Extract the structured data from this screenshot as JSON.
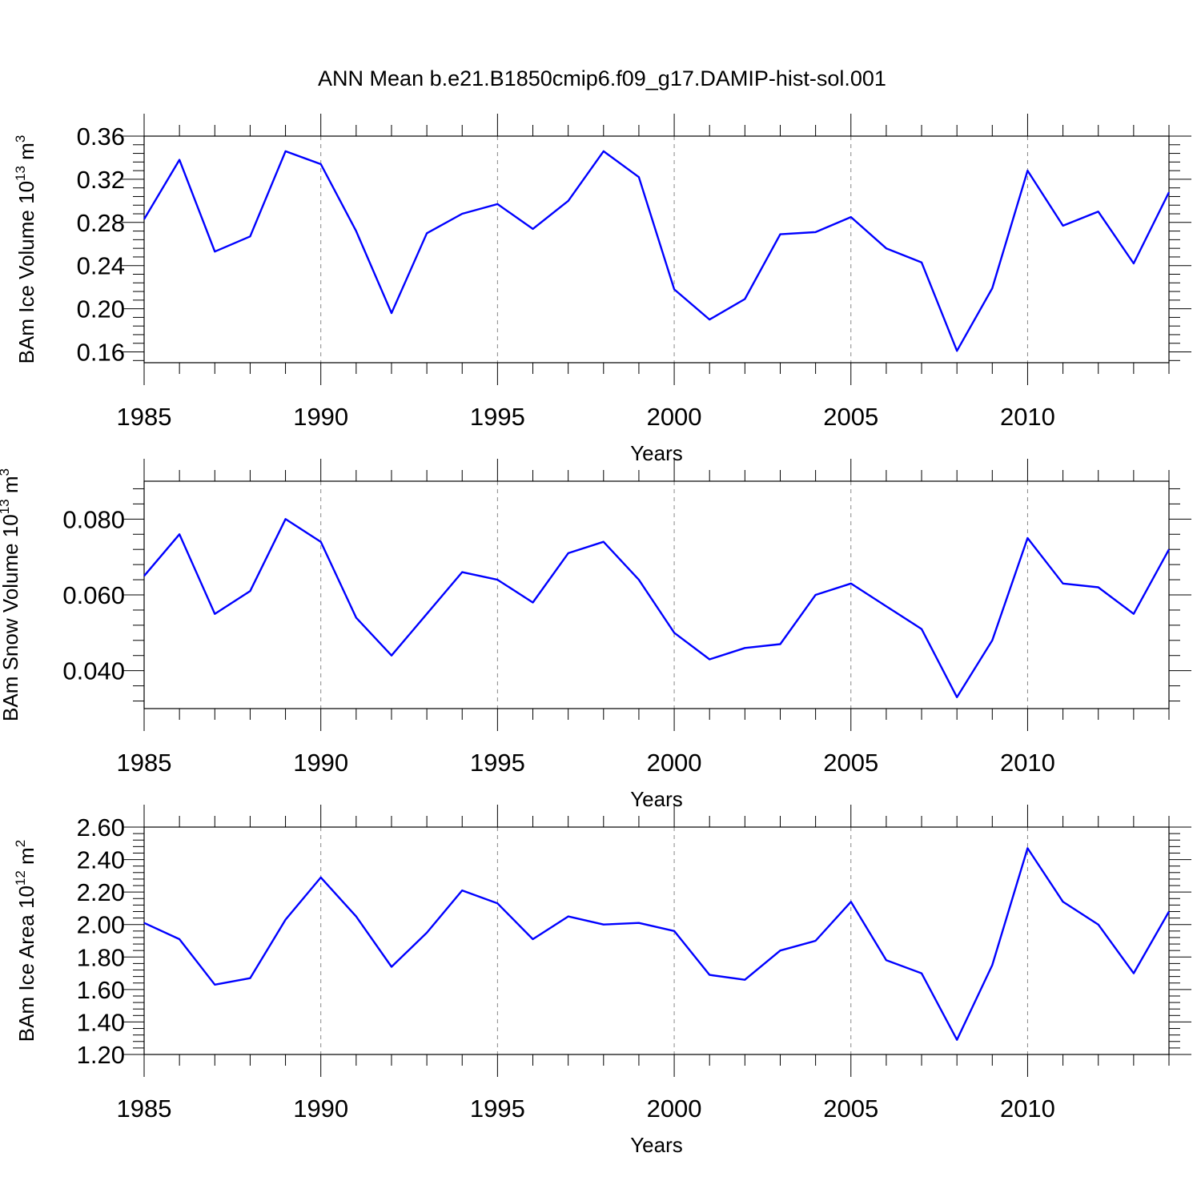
{
  "title": "ANN Mean b.e21.B1850cmip6.f09_g17.DAMIP-hist-sol.001",
  "colors": {
    "series": "#0000ff",
    "grid": "#888888",
    "axis": "#000000"
  },
  "chart_data": [
    {
      "type": "line",
      "xlabel": "Years",
      "ylabel_main": "BAm Ice Volume 10",
      "ylabel_exp": "13",
      "ylabel_unit": " m",
      "ylabel_unit_exp": "3",
      "xlim": [
        1985,
        2014
      ],
      "ylim": [
        0.15,
        0.36
      ],
      "xticks": [
        1985,
        1990,
        1995,
        2000,
        2005,
        2010
      ],
      "yticks": [
        "0.16",
        "0.20",
        "0.24",
        "0.28",
        "0.32",
        "0.36"
      ],
      "grid": "vertical dashed at major x ticks",
      "x": [
        1985,
        1986,
        1987,
        1988,
        1989,
        1990,
        1991,
        1992,
        1993,
        1994,
        1995,
        1996,
        1997,
        1998,
        1999,
        2000,
        2001,
        2002,
        2003,
        2004,
        2005,
        2006,
        2007,
        2008,
        2009,
        2010,
        2011,
        2012,
        2013,
        2014
      ],
      "values": [
        0.283,
        0.338,
        0.253,
        0.267,
        0.346,
        0.334,
        0.272,
        0.196,
        0.27,
        0.288,
        0.297,
        0.274,
        0.3,
        0.346,
        0.322,
        0.218,
        0.19,
        0.209,
        0.269,
        0.271,
        0.285,
        0.256,
        0.243,
        0.161,
        0.219,
        0.328,
        0.277,
        0.29,
        0.242,
        0.308
      ]
    },
    {
      "type": "line",
      "xlabel": "Years",
      "ylabel_main": "BAm Snow Volume 10",
      "ylabel_exp": "13",
      "ylabel_unit": " m",
      "ylabel_unit_exp": "3",
      "xlim": [
        1985,
        2014
      ],
      "ylim": [
        0.03,
        0.09
      ],
      "xticks": [
        1985,
        1990,
        1995,
        2000,
        2005,
        2010
      ],
      "yticks": [
        "0.040",
        "0.060",
        "0.080"
      ],
      "grid": "vertical dashed at major x ticks",
      "x": [
        1985,
        1986,
        1987,
        1988,
        1989,
        1990,
        1991,
        1992,
        1993,
        1994,
        1995,
        1996,
        1997,
        1998,
        1999,
        2000,
        2001,
        2002,
        2003,
        2004,
        2005,
        2006,
        2007,
        2008,
        2009,
        2010,
        2011,
        2012,
        2013,
        2014
      ],
      "values": [
        0.065,
        0.076,
        0.055,
        0.061,
        0.08,
        0.074,
        0.054,
        0.044,
        0.055,
        0.066,
        0.064,
        0.058,
        0.071,
        0.074,
        0.064,
        0.05,
        0.043,
        0.046,
        0.047,
        0.06,
        0.063,
        0.057,
        0.051,
        0.033,
        0.048,
        0.075,
        0.063,
        0.062,
        0.055,
        0.072
      ]
    },
    {
      "type": "line",
      "xlabel": "Years",
      "ylabel_main": "BAm Ice Area 10",
      "ylabel_exp": "12",
      "ylabel_unit": " m",
      "ylabel_unit_exp": "2",
      "xlim": [
        1985,
        2014
      ],
      "ylim": [
        1.2,
        2.6
      ],
      "xticks": [
        1985,
        1990,
        1995,
        2000,
        2005,
        2010
      ],
      "yticks": [
        "1.20",
        "1.40",
        "1.60",
        "1.80",
        "2.00",
        "2.20",
        "2.40",
        "2.60"
      ],
      "grid": "vertical dashed at major x ticks",
      "x": [
        1985,
        1986,
        1987,
        1988,
        1989,
        1990,
        1991,
        1992,
        1993,
        1994,
        1995,
        1996,
        1997,
        1998,
        1999,
        2000,
        2001,
        2002,
        2003,
        2004,
        2005,
        2006,
        2007,
        2008,
        2009,
        2010,
        2011,
        2012,
        2013,
        2014
      ],
      "values": [
        2.01,
        1.91,
        1.63,
        1.67,
        2.03,
        2.29,
        2.05,
        1.74,
        1.95,
        2.21,
        2.13,
        1.91,
        2.05,
        2.0,
        2.01,
        1.96,
        1.69,
        1.66,
        1.84,
        1.9,
        2.14,
        1.78,
        1.7,
        1.29,
        1.75,
        2.47,
        2.14,
        2.0,
        1.7,
        2.08
      ]
    }
  ]
}
